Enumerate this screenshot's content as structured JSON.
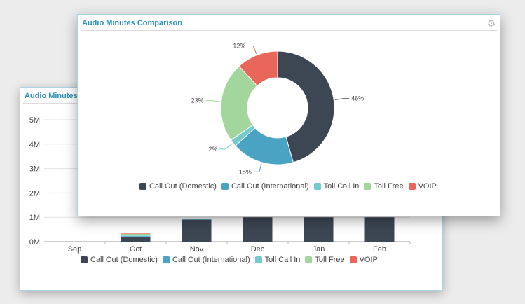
{
  "back_chart": {
    "title": "Audio Minutes Tr",
    "chart_data": {
      "type": "bar",
      "stacked": true,
      "categories": [
        "Sep",
        "Oct",
        "Nov",
        "Dec",
        "Jan",
        "Feb"
      ],
      "y_ticks": [
        "0M",
        "1M",
        "2M",
        "3M",
        "4M",
        "5M"
      ],
      "ylim": [
        0,
        5
      ],
      "series": [
        {
          "name": "Call Out (Domestic)",
          "color": "#3d4753",
          "values": [
            0,
            0.18,
            0.9,
            1.0,
            1.0,
            1.0
          ]
        },
        {
          "name": "Call Out (International)",
          "color": "#4aa3c2",
          "values": [
            0,
            0.04,
            0.05,
            0,
            0,
            0
          ]
        },
        {
          "name": "Toll Call In",
          "color": "#73cbd0",
          "values": [
            0,
            0.03,
            0,
            0,
            0,
            0
          ]
        },
        {
          "name": "Toll Free",
          "color": "#a3d69c",
          "values": [
            0,
            0.07,
            0,
            0,
            0,
            0
          ]
        },
        {
          "name": "VOIP",
          "color": "#e8675a",
          "values": [
            0,
            0.02,
            0,
            0,
            0,
            0
          ]
        }
      ]
    }
  },
  "front_chart": {
    "title": "Audio Minutes Comparison",
    "settings_icon": "gear-icon",
    "chart_data": {
      "type": "pie",
      "donut": true,
      "slices": [
        {
          "name": "Call Out (Domestic)",
          "value": 46,
          "label": "46%",
          "color": "#3d4753"
        },
        {
          "name": "Call Out (International)",
          "value": 18,
          "label": "18%",
          "color": "#4aa3c2"
        },
        {
          "name": "Toll Call In",
          "value": 2,
          "label": "2%",
          "color": "#73cbd0"
        },
        {
          "name": "Toll Free",
          "value": 23,
          "label": "23%",
          "color": "#a3d69c"
        },
        {
          "name": "VOIP",
          "value": 12,
          "label": "12%",
          "color": "#e8675a"
        }
      ]
    }
  }
}
